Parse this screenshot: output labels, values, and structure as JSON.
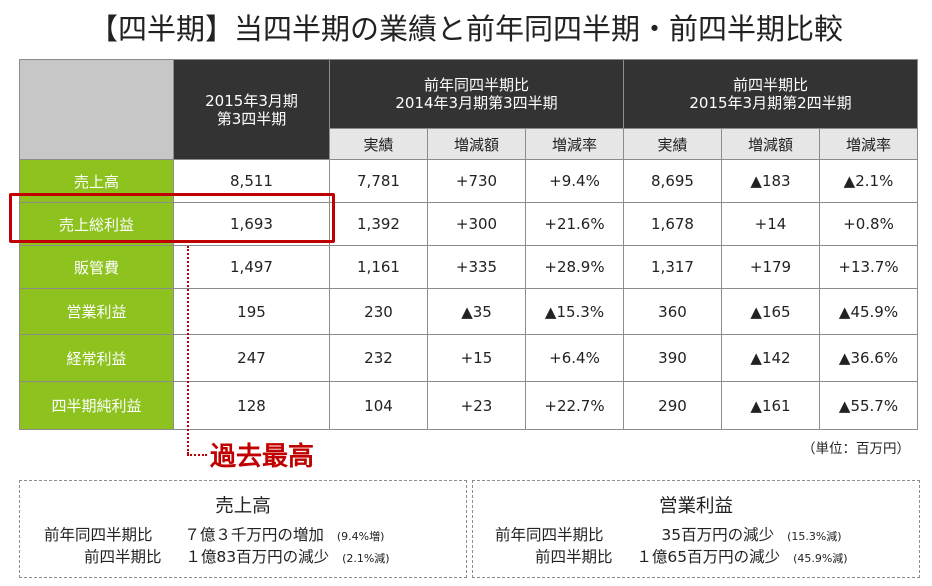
{
  "title": "【四半期】当四半期の業績と前年同四半期・前四半期比較",
  "table": {
    "current_header_line1": "2015年3月期",
    "current_header_line2": "第3四半期",
    "yoy_header_line1": "前年同四半期比",
    "yoy_header_line2": "2014年3月期第3四半期",
    "qoq_header_line1": "前四半期比",
    "qoq_header_line2": "2015年3月期第2四半期",
    "subheaders": [
      "実績",
      "増減額",
      "増減率",
      "実績",
      "増減額",
      "増減率"
    ],
    "rows": [
      {
        "label": "売上高",
        "current": "8,511",
        "yoy_actual": "7,781",
        "yoy_diff": "+730",
        "yoy_rate": "+9.4%",
        "qoq_actual": "8,695",
        "qoq_diff": "▲183",
        "qoq_rate": "▲2.1%"
      },
      {
        "label": "売上総利益",
        "current": "1,693",
        "yoy_actual": "1,392",
        "yoy_diff": "+300",
        "yoy_rate": "+21.6%",
        "qoq_actual": "1,678",
        "qoq_diff": "+14",
        "qoq_rate": "+0.8%"
      },
      {
        "label": "販管費",
        "current": "1,497",
        "yoy_actual": "1,161",
        "yoy_diff": "+335",
        "yoy_rate": "+28.9%",
        "qoq_actual": "1,317",
        "qoq_diff": "+179",
        "qoq_rate": "+13.7%"
      },
      {
        "label": "営業利益",
        "current": "195",
        "yoy_actual": "230",
        "yoy_diff": "▲35",
        "yoy_rate": "▲15.3%",
        "qoq_actual": "360",
        "qoq_diff": "▲165",
        "qoq_rate": "▲45.9%"
      },
      {
        "label": "経常利益",
        "current": "247",
        "yoy_actual": "232",
        "yoy_diff": "+15",
        "yoy_rate": "+6.4%",
        "qoq_actual": "390",
        "qoq_diff": "▲142",
        "qoq_rate": "▲36.6%"
      },
      {
        "label": "四半期純利益",
        "current": "128",
        "yoy_actual": "104",
        "yoy_diff": "+23",
        "yoy_rate": "+22.7%",
        "qoq_actual": "290",
        "qoq_diff": "▲161",
        "qoq_rate": "▲55.7%"
      }
    ]
  },
  "record_label": "過去最高",
  "unit_label": "（単位：百万円）",
  "summary_sales": {
    "title": "売上高",
    "line1_label": "前年同四半期比",
    "line1_text": "７億３千万円の増加",
    "line1_note": "(9.4%増)",
    "line2_label": "前四半期比",
    "line2_text": "１億83百万円の減少",
    "line2_note": "(2.1%減)"
  },
  "summary_operating": {
    "title": "営業利益",
    "line1_label": "前年同四半期比",
    "line1_text": "35百万円の減少",
    "line1_note": "(15.3%減)",
    "line2_label": "前四半期比",
    "line2_text": "１億65百万円の減少",
    "line2_note": "(45.9%減)"
  },
  "colors": {
    "accent_green": "#8dc21f",
    "header_dark": "#333333",
    "highlight_red": "#c00000"
  }
}
